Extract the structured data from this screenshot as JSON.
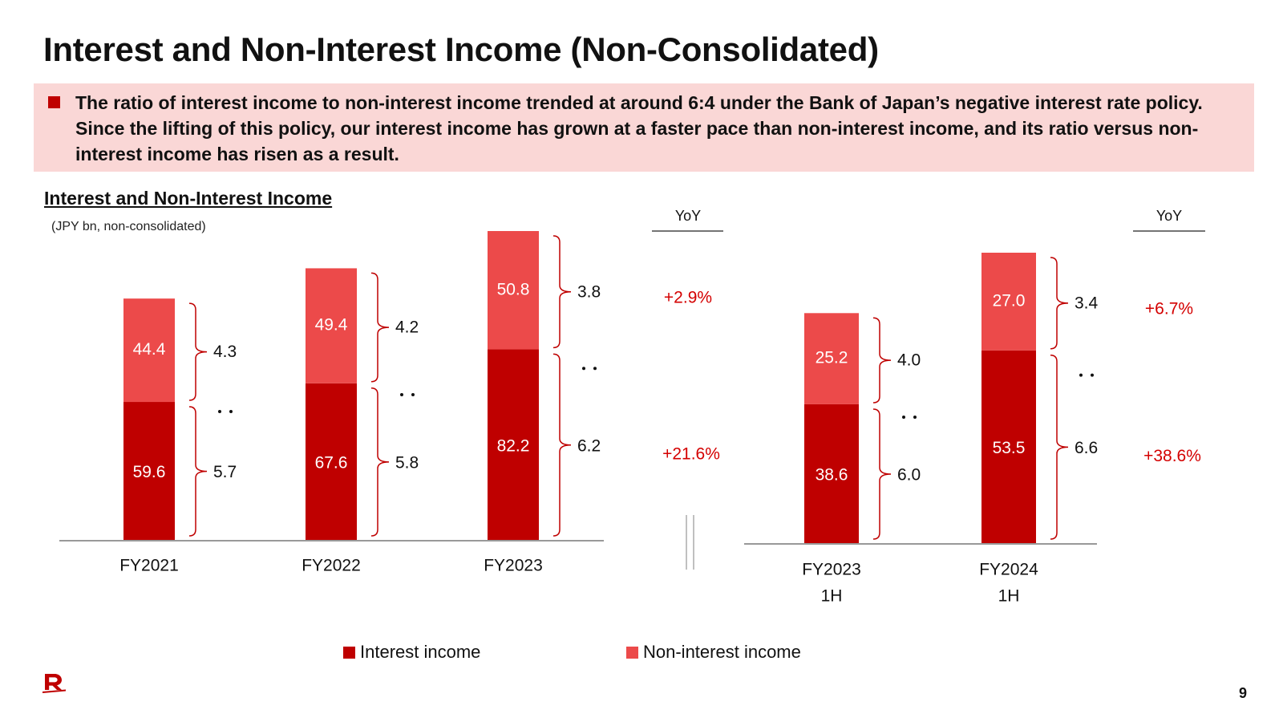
{
  "page": {
    "title": "Interest and Non-Interest Income (Non-Consolidated)",
    "callout": "The ratio of interest income to non-interest income trended at around 6:4 under the Bank of Japan’s negative interest rate policy. Since the lifting of this policy, our interest income has grown at a faster pace than non-interest income, and its ratio versus non-interest income has risen as a result.",
    "section_title": "Interest and Non-Interest Income",
    "unit": "(JPY bn, non-consolidated)",
    "page_number": "9"
  },
  "colors": {
    "interest": "#bf0000",
    "non_interest": "#ec4a4a",
    "yoy_text": "#d40000",
    "accent": "#bf0000"
  },
  "legend": [
    {
      "label": "Interest income",
      "color": "#bf0000"
    },
    {
      "label": "Non-interest income",
      "color": "#ec4a4a"
    }
  ],
  "chart_data": [
    {
      "type": "bar",
      "stacked": true,
      "categories": [
        "FY2021",
        "FY2022",
        "FY2023"
      ],
      "series": [
        {
          "name": "Interest income",
          "values": [
            59.6,
            67.6,
            82.2
          ]
        },
        {
          "name": "Non-interest income",
          "values": [
            44.4,
            49.4,
            50.8
          ]
        }
      ],
      "ratios": [
        {
          "non_interest": "4.3",
          "interest": "5.7"
        },
        {
          "non_interest": "4.2",
          "interest": "5.8"
        },
        {
          "non_interest": "3.8",
          "interest": "6.2"
        }
      ],
      "yoy_header": "YoY",
      "yoy": {
        "non_interest": "+2.9%",
        "interest": "+21.6%"
      },
      "ylim": [
        0,
        140
      ]
    },
    {
      "type": "bar",
      "stacked": true,
      "categories": [
        [
          "FY2023",
          "1H"
        ],
        [
          "FY2024",
          "1H"
        ]
      ],
      "series": [
        {
          "name": "Interest income",
          "values": [
            38.6,
            53.5
          ]
        },
        {
          "name": "Non-interest income",
          "values": [
            25.2,
            27.0
          ]
        }
      ],
      "ratios": [
        {
          "non_interest": "4.0",
          "interest": "6.0"
        },
        {
          "non_interest": "3.4",
          "interest": "6.6"
        }
      ],
      "yoy_header": "YoY",
      "yoy": {
        "non_interest": "+6.7%",
        "interest": "+38.6%"
      },
      "ylim": [
        0,
        100
      ]
    }
  ]
}
